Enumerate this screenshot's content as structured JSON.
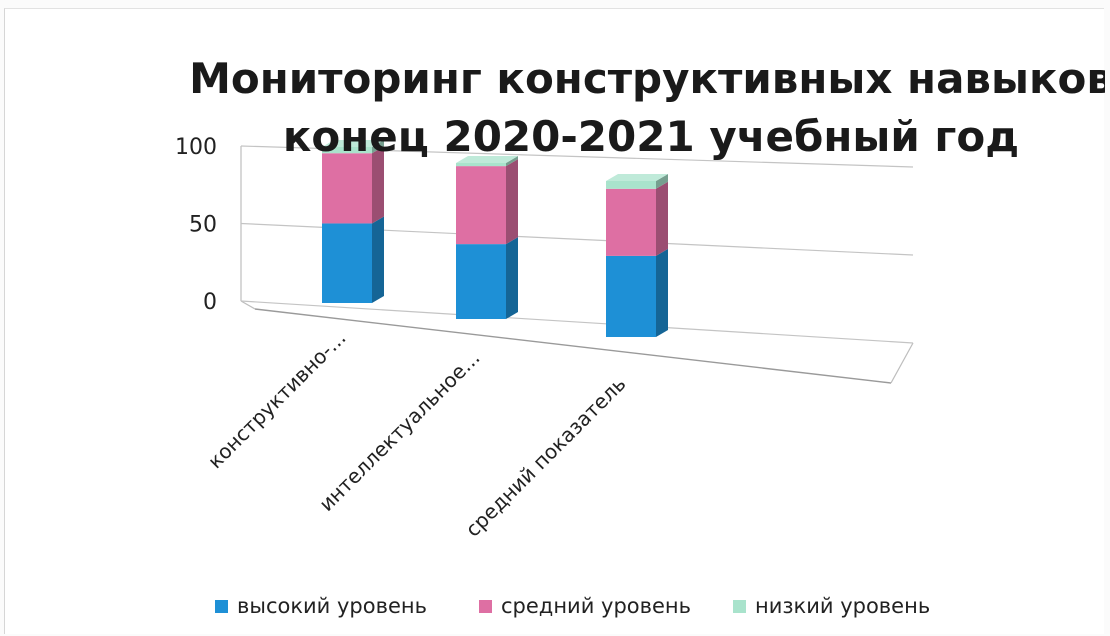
{
  "chart_data": {
    "type": "bar",
    "stacked": true,
    "three_d": true,
    "title": "Мониторинг конструктивных навыков конец 2020-2021 учебный год",
    "title_lines": [
      "Мониторинг конструктивных навыков",
      "конец 2020-2021 учебный год"
    ],
    "categories": [
      "конструктивно-...",
      "интеллектуальное...",
      "средний показатель"
    ],
    "ylim": [
      0,
      100
    ],
    "yticks": [
      "0",
      "50",
      "100"
    ],
    "grid": true,
    "legend_position": "bottom",
    "series": [
      {
        "name": "высокий уровень",
        "color": "#1e90d6",
        "values": [
          51,
          48,
          52
        ]
      },
      {
        "name": "средний уровень",
        "color": "#de6fa3",
        "values": [
          45,
          50,
          43
        ]
      },
      {
        "name": "низкий уровень",
        "color": "#a9e3cc",
        "values": [
          4,
          2,
          5
        ]
      }
    ]
  }
}
